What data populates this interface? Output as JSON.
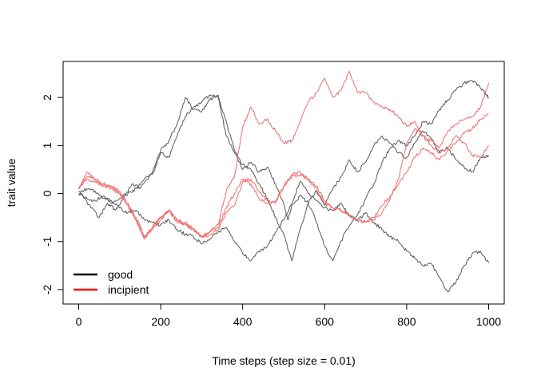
{
  "chart_data": {
    "type": "line",
    "title": "",
    "xlabel": "Time steps (step size = 0.01)",
    "ylabel": "trait value",
    "xlim": [
      -38,
      1038
    ],
    "ylim": [
      -2.3,
      2.75
    ],
    "xticks": [
      0,
      200,
      400,
      600,
      800,
      1000
    ],
    "xtick_labels": [
      "0",
      "200",
      "400",
      "600",
      "800",
      "1000"
    ],
    "yticks": [
      -2,
      -1,
      0,
      1,
      2
    ],
    "ytick_labels": [
      "-2",
      "-1",
      "0",
      "1",
      "2"
    ],
    "grid": false,
    "legend": {
      "position": "bottom-left",
      "entries": [
        {
          "label": "good",
          "color": "#000000"
        },
        {
          "label": "incipient",
          "color": "#ff0000"
        }
      ]
    },
    "colors": {
      "good": "#595959",
      "incipient": "#f26a6a"
    },
    "series": [
      {
        "group": "good",
        "x": [
          0,
          30,
          50,
          70,
          90,
          110,
          130,
          150,
          180,
          200,
          220,
          240,
          260,
          280,
          300,
          320,
          340,
          350,
          360,
          380,
          400,
          420,
          440,
          460,
          480,
          500,
          510,
          520,
          540,
          560,
          580,
          600,
          620,
          650,
          680,
          700,
          720,
          740,
          760,
          780,
          800,
          820,
          840,
          860,
          880,
          900,
          920,
          940,
          960,
          980,
          990,
          1000
        ],
        "y": [
          0.05,
          -0.3,
          -0.5,
          -0.2,
          -0.35,
          -0.1,
          0.2,
          0.1,
          0.45,
          0.9,
          1.1,
          1.45,
          2.0,
          1.75,
          1.7,
          1.95,
          2.05,
          1.6,
          1.2,
          0.85,
          0.5,
          0.65,
          0.45,
          0.55,
          0.2,
          -0.2,
          -0.55,
          -0.25,
          -0.05,
          -0.2,
          -0.6,
          -1.1,
          -1.4,
          -0.8,
          -0.45,
          -0.1,
          0.2,
          0.65,
          0.95,
          1.1,
          1.0,
          1.2,
          1.5,
          1.45,
          1.75,
          1.95,
          2.15,
          2.3,
          2.35,
          2.2,
          2.1,
          2.0
        ]
      },
      {
        "group": "good",
        "x": [
          0,
          20,
          40,
          60,
          80,
          100,
          120,
          140,
          160,
          180,
          200,
          220,
          240,
          260,
          280,
          300,
          320,
          340,
          360,
          380,
          400,
          420,
          440,
          460,
          480,
          500,
          520,
          540,
          560,
          580,
          600,
          620,
          640,
          660,
          680,
          700,
          720,
          740,
          760,
          780,
          800,
          820,
          840,
          860,
          880,
          900,
          920,
          940,
          960,
          980,
          1000
        ],
        "y": [
          0.0,
          -0.1,
          -0.15,
          -0.05,
          -0.2,
          -0.1,
          0.0,
          0.1,
          0.3,
          0.4,
          0.85,
          0.75,
          1.2,
          1.6,
          1.8,
          1.9,
          2.05,
          2.0,
          1.5,
          0.9,
          0.6,
          0.5,
          0.2,
          -0.1,
          -0.5,
          -0.85,
          -1.4,
          -0.75,
          -0.2,
          0.05,
          -0.25,
          0.1,
          0.35,
          0.7,
          0.45,
          0.65,
          1.0,
          1.2,
          1.05,
          0.85,
          0.75,
          1.05,
          1.3,
          1.15,
          0.85,
          0.95,
          0.7,
          0.55,
          0.45,
          0.75,
          0.8
        ]
      },
      {
        "group": "good",
        "x": [
          0,
          20,
          40,
          60,
          80,
          100,
          120,
          140,
          160,
          180,
          200,
          220,
          240,
          260,
          280,
          300,
          320,
          340,
          360,
          380,
          400,
          420,
          440,
          460,
          480,
          500,
          520,
          540,
          560,
          580,
          600,
          620,
          640,
          660,
          680,
          700,
          720,
          740,
          760,
          780,
          800,
          820,
          840,
          860,
          880,
          900,
          920,
          940,
          960,
          980,
          1000
        ],
        "y": [
          0.0,
          0.1,
          0.05,
          -0.1,
          -0.15,
          -0.3,
          -0.4,
          -0.35,
          -0.55,
          -0.6,
          -0.65,
          -0.55,
          -0.75,
          -0.85,
          -0.9,
          -1.05,
          -0.95,
          -0.8,
          -0.7,
          -1.0,
          -1.25,
          -1.4,
          -1.2,
          -1.1,
          -0.8,
          -0.55,
          -0.2,
          0.25,
          0.0,
          -0.15,
          -0.3,
          -0.35,
          -0.2,
          -0.45,
          -0.55,
          -0.4,
          -0.6,
          -0.75,
          -0.9,
          -1.0,
          -1.2,
          -1.35,
          -1.5,
          -1.45,
          -1.75,
          -2.05,
          -1.85,
          -1.5,
          -1.25,
          -1.2,
          -1.45
        ]
      },
      {
        "group": "incipient",
        "x": [
          0,
          20,
          40,
          60,
          80,
          100,
          120,
          140,
          160,
          180,
          200,
          220,
          240,
          260,
          280,
          300,
          320,
          340,
          360,
          380,
          400,
          420,
          440,
          460,
          480,
          500,
          520,
          540,
          560,
          580,
          600,
          620,
          640,
          660,
          680,
          700,
          720,
          740,
          760,
          780,
          800,
          820,
          840,
          860,
          880,
          900,
          920,
          940,
          960,
          980,
          1000
        ],
        "y": [
          0.1,
          0.45,
          0.3,
          0.2,
          0.15,
          0.0,
          -0.25,
          -0.55,
          -0.95,
          -0.75,
          -0.55,
          -0.35,
          -0.6,
          -0.65,
          -0.75,
          -0.9,
          -0.85,
          -0.75,
          -0.4,
          -0.25,
          0.25,
          0.3,
          0.05,
          -0.15,
          -0.2,
          0.15,
          0.35,
          0.4,
          0.3,
          0.15,
          -0.15,
          -0.3,
          -0.35,
          -0.45,
          -0.55,
          -0.6,
          -0.5,
          -0.25,
          -0.05,
          0.2,
          0.45,
          0.75,
          0.95,
          0.85,
          0.7,
          0.9,
          1.05,
          1.25,
          1.35,
          1.55,
          1.65
        ]
      },
      {
        "group": "incipient",
        "x": [
          0,
          20,
          40,
          60,
          80,
          100,
          120,
          140,
          160,
          180,
          200,
          220,
          240,
          260,
          280,
          300,
          320,
          340,
          360,
          380,
          400,
          420,
          440,
          460,
          480,
          500,
          520,
          540,
          560,
          580,
          600,
          620,
          640,
          660,
          680,
          700,
          720,
          740,
          760,
          780,
          800,
          820,
          840,
          860,
          880,
          900,
          920,
          940,
          960,
          980,
          1000
        ],
        "y": [
          0.1,
          0.35,
          0.3,
          0.2,
          0.15,
          0.05,
          -0.2,
          -0.5,
          -0.9,
          -0.7,
          -0.5,
          -0.35,
          -0.55,
          -0.6,
          -0.75,
          -0.9,
          -0.8,
          -0.65,
          0.05,
          0.35,
          1.4,
          1.8,
          1.45,
          1.55,
          1.3,
          1.05,
          1.1,
          1.5,
          1.9,
          2.1,
          2.4,
          2.0,
          2.15,
          2.55,
          2.1,
          2.1,
          1.9,
          1.8,
          1.75,
          1.6,
          1.4,
          1.5,
          1.2,
          1.1,
          0.95,
          1.3,
          1.45,
          1.55,
          1.6,
          1.8,
          2.3
        ]
      },
      {
        "group": "incipient",
        "x": [
          0,
          20,
          40,
          60,
          80,
          100,
          120,
          140,
          160,
          180,
          200,
          220,
          240,
          260,
          280,
          300,
          320,
          340,
          360,
          380,
          400,
          420,
          440,
          460,
          480,
          500,
          520,
          540,
          560,
          580,
          600,
          620,
          640,
          660,
          680,
          700,
          720,
          740,
          760,
          780,
          800,
          820,
          840,
          860,
          880,
          900,
          920,
          940,
          960,
          980,
          1000
        ],
        "y": [
          0.1,
          0.3,
          0.25,
          0.15,
          0.1,
          0.0,
          -0.25,
          -0.55,
          -0.9,
          -0.7,
          -0.5,
          -0.35,
          -0.55,
          -0.65,
          -0.75,
          -0.9,
          -0.8,
          -0.7,
          -0.3,
          0.0,
          0.3,
          0.2,
          -0.1,
          -0.2,
          -0.15,
          0.15,
          0.4,
          0.45,
          0.3,
          0.1,
          -0.2,
          -0.3,
          -0.35,
          -0.45,
          -0.55,
          -0.6,
          -0.55,
          -0.4,
          -0.1,
          0.3,
          1.05,
          1.35,
          1.2,
          1.0,
          0.85,
          0.95,
          1.2,
          1.05,
          0.8,
          0.75,
          1.0
        ]
      }
    ]
  }
}
